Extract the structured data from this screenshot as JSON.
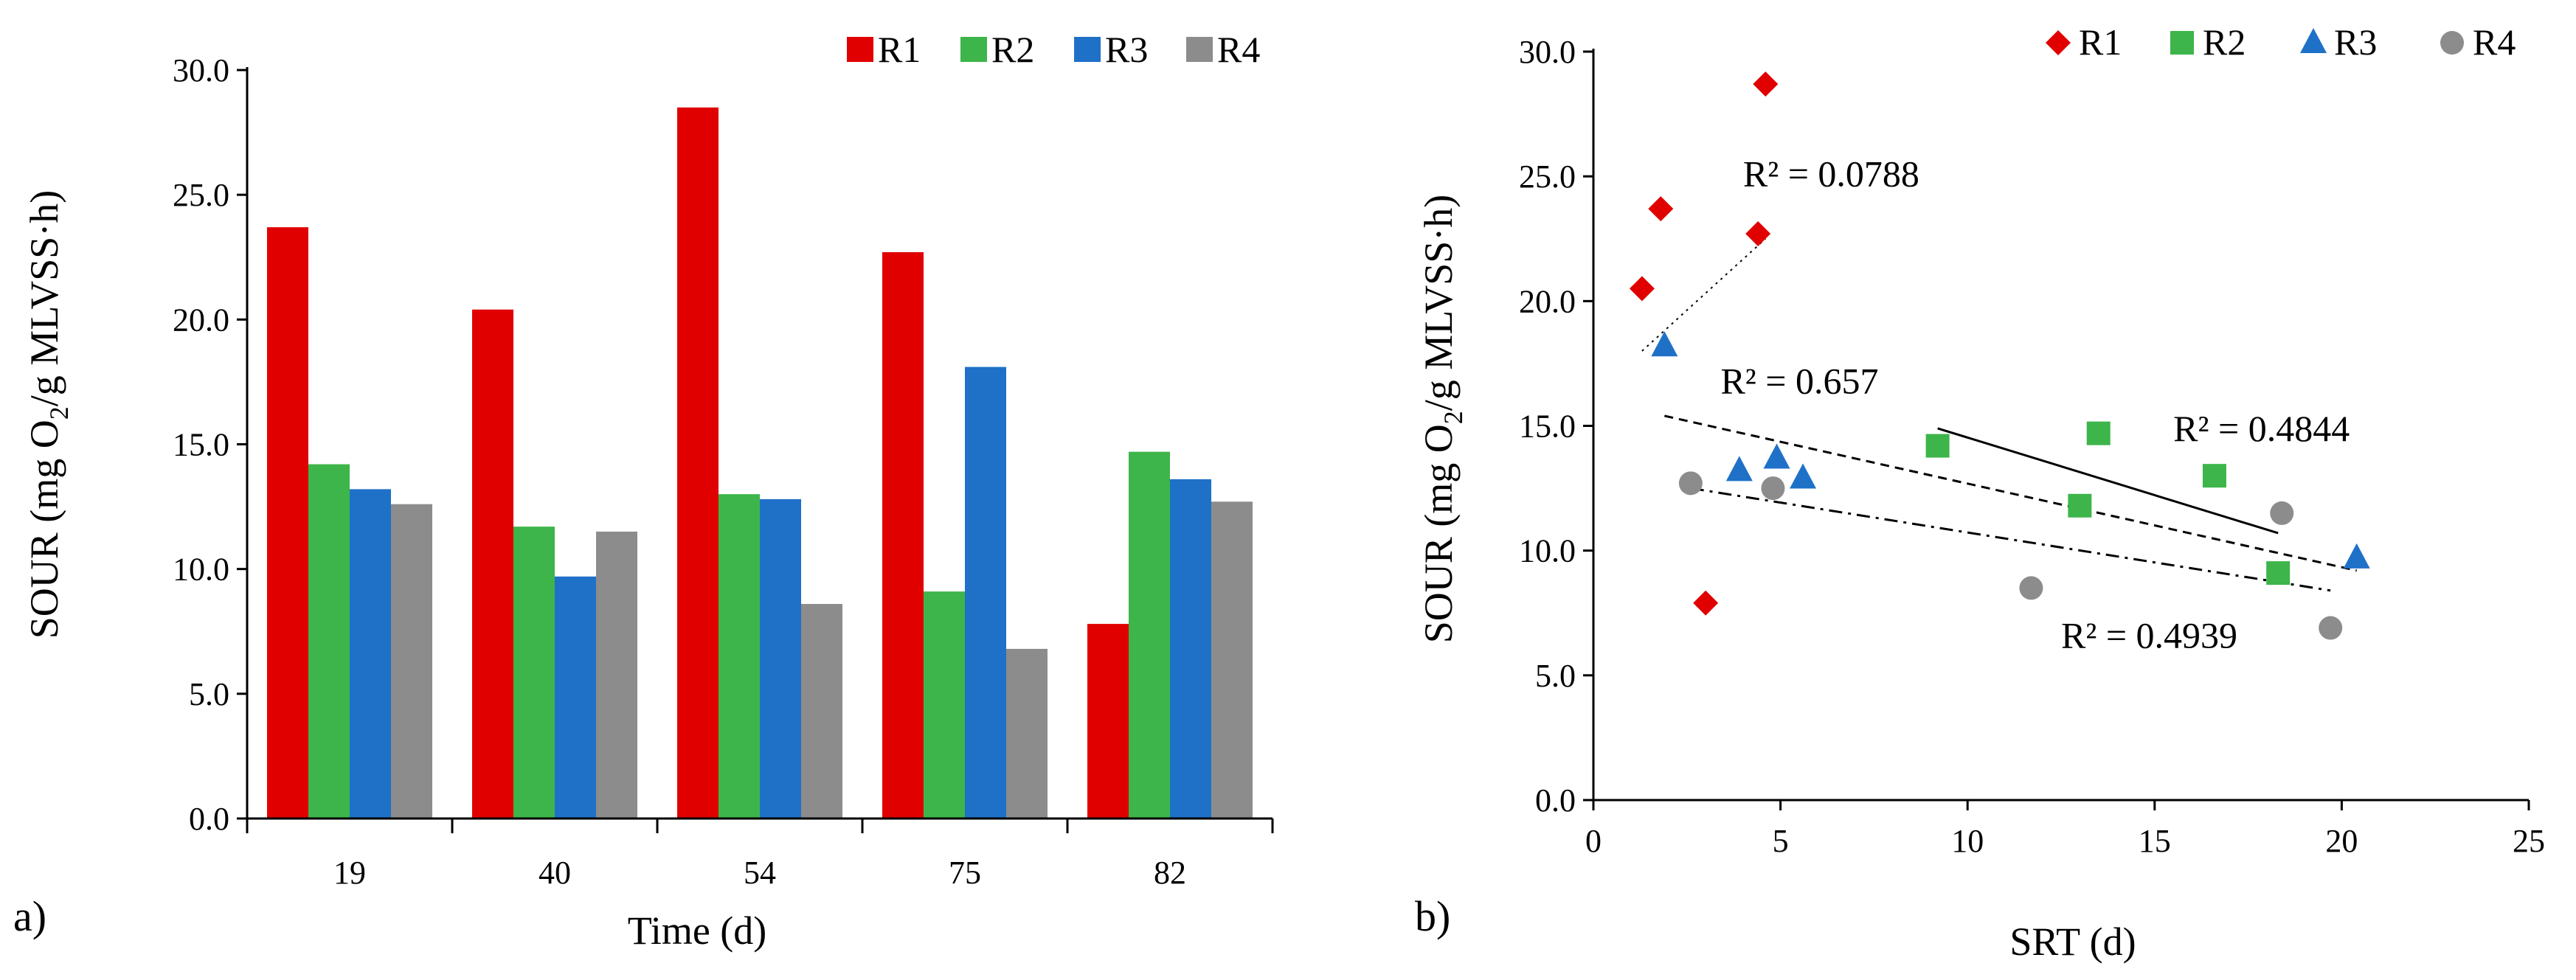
{
  "colors": {
    "R1": "#E00000",
    "R2": "#3DB54A",
    "R3": "#1F71C8",
    "R4": "#8C8C8C",
    "axis": "#000000",
    "trendline": "#000000"
  },
  "chart_data": [
    {
      "panel_label": "a)",
      "type": "bar",
      "xlabel": "Time (d)",
      "ylabel_prefix": "SOUR (mg O",
      "ylabel_sub": "2",
      "ylabel_suffix": "/g MLVSS·h)",
      "ylim": [
        0,
        30
      ],
      "yticks": [
        0,
        5,
        10,
        15,
        20,
        25,
        30
      ],
      "ytick_labels": [
        "0.0",
        "5.0",
        "10.0",
        "15.0",
        "20.0",
        "25.0",
        "30.0"
      ],
      "categories": [
        "19",
        "40",
        "54",
        "75",
        "82"
      ],
      "legend_position": "top-right",
      "grid": false,
      "series": [
        {
          "name": "R1",
          "values": [
            23.7,
            20.4,
            28.5,
            22.7,
            7.8
          ]
        },
        {
          "name": "R2",
          "values": [
            14.2,
            11.7,
            13.0,
            9.1,
            14.7
          ]
        },
        {
          "name": "R3",
          "values": [
            13.2,
            9.7,
            12.8,
            18.1,
            13.6
          ]
        },
        {
          "name": "R4",
          "values": [
            12.6,
            11.5,
            8.6,
            6.8,
            12.7
          ]
        }
      ]
    },
    {
      "panel_label": "b)",
      "type": "scatter",
      "xlabel": "SRT (d)",
      "ylabel_prefix": "SOUR (mg O",
      "ylabel_sub": "2",
      "ylabel_suffix": "/g MLVSS·h)",
      "xlim": [
        0,
        25
      ],
      "ylim": [
        0,
        30
      ],
      "xticks": [
        0,
        5,
        10,
        15,
        20,
        25
      ],
      "xtick_labels": [
        "0",
        "5",
        "10",
        "15",
        "20",
        "25"
      ],
      "yticks": [
        0,
        5,
        10,
        15,
        20,
        25,
        30
      ],
      "ytick_labels": [
        "0.0",
        "5.0",
        "10.0",
        "15.0",
        "20.0",
        "25.0",
        "30.0"
      ],
      "legend_position": "top-right",
      "grid": false,
      "series": [
        {
          "name": "R1",
          "marker": "diamond",
          "x": [
            1.3,
            1.8,
            3.0,
            4.4,
            4.6
          ],
          "y": [
            20.5,
            23.7,
            7.9,
            22.7,
            28.7
          ]
        },
        {
          "name": "R2",
          "marker": "square",
          "x": [
            9.2,
            13.0,
            13.5,
            16.6,
            18.3
          ],
          "y": [
            14.2,
            11.8,
            14.7,
            13.0,
            9.1
          ]
        },
        {
          "name": "R3",
          "marker": "triangle",
          "x": [
            1.9,
            3.9,
            4.9,
            5.6,
            20.4
          ],
          "y": [
            18.2,
            13.2,
            13.7,
            12.9,
            9.7
          ]
        },
        {
          "name": "R4",
          "marker": "circle",
          "x": [
            2.6,
            4.8,
            11.7,
            18.4,
            19.7
          ],
          "y": [
            12.7,
            12.5,
            8.5,
            11.5,
            6.9
          ]
        }
      ],
      "trendlines": [
        {
          "series": "R1",
          "label": "R² = 0.0788",
          "style": "dotted",
          "x1": 1.3,
          "y1": 18.0,
          "x2": 4.6,
          "y2": 22.5,
          "label_x": 4.0,
          "label_y": 24.6
        },
        {
          "series": "R2",
          "label": "R² = 0.4844",
          "style": "solid",
          "x1": 9.2,
          "y1": 14.9,
          "x2": 18.3,
          "y2": 10.7,
          "label_x": 15.5,
          "label_y": 14.4
        },
        {
          "series": "R3",
          "label": "R² = 0.657",
          "style": "dashed",
          "x1": 1.9,
          "y1": 15.4,
          "x2": 20.4,
          "y2": 9.2,
          "label_x": 3.4,
          "label_y": 16.3
        },
        {
          "series": "R4",
          "label": "R² = 0.4939",
          "style": "dashdot",
          "x1": 2.6,
          "y1": 12.5,
          "x2": 19.7,
          "y2": 8.4,
          "label_x": 12.5,
          "label_y": 6.1
        }
      ]
    }
  ]
}
